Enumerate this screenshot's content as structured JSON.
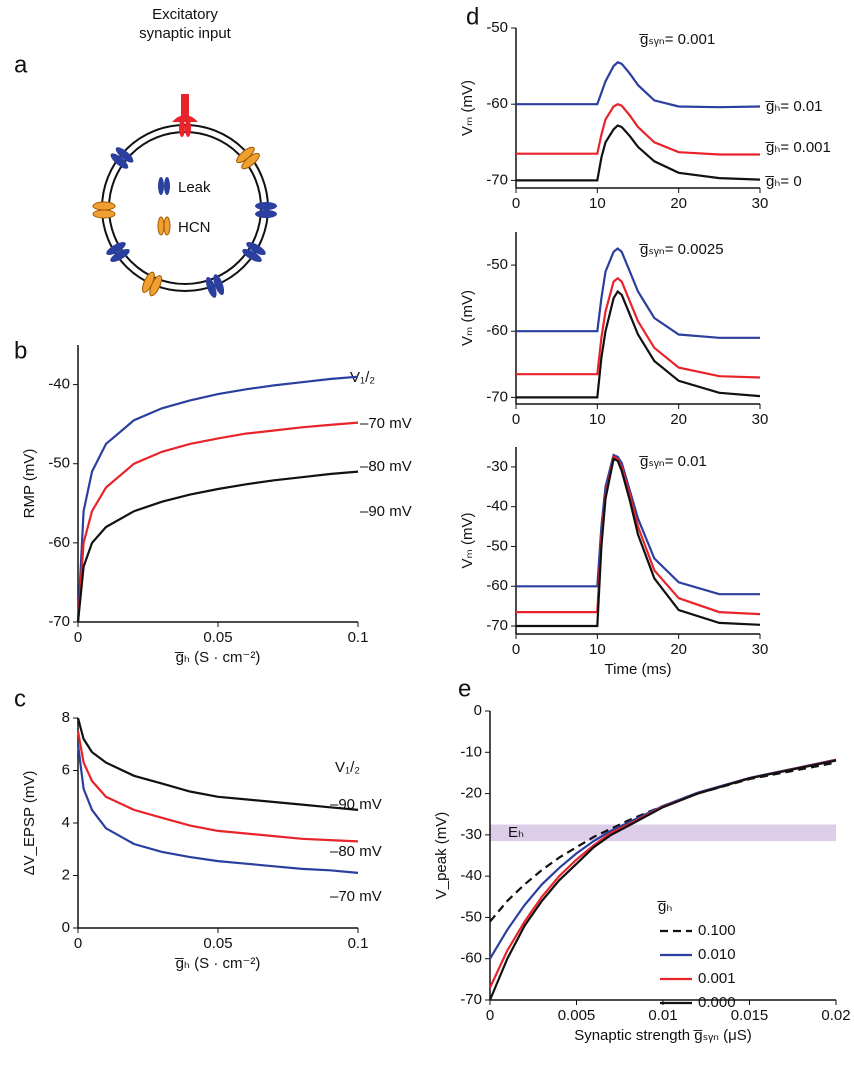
{
  "diagram": {
    "label": "a",
    "input": [
      "Excitatory",
      "synaptic input"
    ],
    "legend": [
      "Leak",
      "HCN"
    ]
  },
  "chart_data": [
    {
      "type": "line",
      "label": "b",
      "legend_title": "V₁/₂",
      "ylabel": "RMP (mV)",
      "xlabel": "g̅ₕ (S · cm⁻²)",
      "xlim": [
        0,
        0.1
      ],
      "xticks": [
        0,
        0.05,
        0.1
      ],
      "ylim": [
        -70,
        -35
      ],
      "yticks": [
        -70,
        -60,
        -50,
        -40
      ],
      "x": [
        0,
        0.002,
        0.005,
        0.01,
        0.02,
        0.03,
        0.04,
        0.05,
        0.06,
        0.07,
        0.08,
        0.09,
        0.1
      ],
      "series": [
        {
          "name": "–70 mV",
          "color": "#2b3f9e",
          "values": [
            -70,
            -56,
            -51,
            -47.5,
            -44.5,
            -43,
            -42,
            -41.2,
            -40.6,
            -40.1,
            -39.7,
            -39.3,
            -39
          ]
        },
        {
          "name": "–80 mV",
          "color": "#e8232a",
          "values": [
            -70,
            -60,
            -56,
            -53,
            -50,
            -48.5,
            -47.5,
            -46.8,
            -46.2,
            -45.8,
            -45.4,
            -45.1,
            -44.8
          ]
        },
        {
          "name": "–90 mV",
          "color": "#111111",
          "values": [
            -70,
            -63,
            -60,
            -58,
            -56,
            -54.8,
            -53.9,
            -53.2,
            -52.6,
            -52.1,
            -51.7,
            -51.3,
            -51
          ]
        }
      ]
    },
    {
      "type": "line",
      "label": "c",
      "legend_title": "V₁/₂",
      "ylabel": "ΔV_EPSP (mV)",
      "xlabel": "g̅ₕ (S · cm⁻²)",
      "xlim": [
        0,
        0.1
      ],
      "xticks": [
        0,
        0.05,
        0.1
      ],
      "ylim": [
        0,
        8
      ],
      "yticks": [
        0,
        2,
        4,
        6,
        8
      ],
      "x": [
        0,
        0.002,
        0.005,
        0.01,
        0.02,
        0.03,
        0.04,
        0.05,
        0.06,
        0.07,
        0.08,
        0.09,
        0.1
      ],
      "series": [
        {
          "name": "–90 mV",
          "color": "#111111",
          "values": [
            8,
            7.2,
            6.7,
            6.3,
            5.8,
            5.5,
            5.2,
            5.0,
            4.9,
            4.8,
            4.7,
            4.6,
            4.5
          ]
        },
        {
          "name": "–80 mV",
          "color": "#e8232a",
          "values": [
            7.5,
            6.3,
            5.6,
            5.0,
            4.5,
            4.2,
            3.9,
            3.7,
            3.6,
            3.5,
            3.4,
            3.35,
            3.3
          ]
        },
        {
          "name": "–70 mV",
          "color": "#2b3f9e",
          "values": [
            7.0,
            5.3,
            4.5,
            3.8,
            3.2,
            2.9,
            2.7,
            2.55,
            2.45,
            2.35,
            2.25,
            2.2,
            2.1
          ]
        }
      ]
    },
    {
      "type": "line",
      "label": "d",
      "annotation": "g̅ₛᵧₙ= 0.001",
      "ylabel": "Vₘ (mV)",
      "xlim": [
        0,
        30
      ],
      "xticks": [
        0,
        10,
        20,
        30
      ],
      "ylim": [
        -71,
        -50
      ],
      "yticks": [
        -70,
        -60,
        -50
      ],
      "x": [
        0,
        10,
        10.5,
        11,
        12,
        12.5,
        13,
        14,
        15,
        17,
        20,
        25,
        30
      ],
      "series": [
        {
          "name": "g̅ₕ= 0.01",
          "color": "#2b3f9e",
          "values": [
            -60,
            -60,
            -58.5,
            -57,
            -55,
            -54.5,
            -54.7,
            -56,
            -57.5,
            -59.5,
            -60.3,
            -60.4,
            -60.3
          ]
        },
        {
          "name": "g̅ₕ= 0.001",
          "color": "#e8232a",
          "values": [
            -66.5,
            -66.5,
            -64,
            -62,
            -60.3,
            -60,
            -60.2,
            -61.5,
            -63,
            -65,
            -66.3,
            -66.6,
            -66.6
          ]
        },
        {
          "name": "g̅ₕ= 0",
          "color": "#111111",
          "values": [
            -70,
            -70,
            -67,
            -65,
            -63.3,
            -62.8,
            -63,
            -64.2,
            -65.6,
            -67.5,
            -69,
            -69.7,
            -69.9
          ]
        }
      ]
    },
    {
      "type": "line",
      "annotation": "g̅ₛᵧₙ= 0.0025",
      "ylabel": "Vₘ (mV)",
      "xlim": [
        0,
        30
      ],
      "xticks": [
        0,
        10,
        20,
        30
      ],
      "ylim": [
        -71,
        -45
      ],
      "yticks": [
        -70,
        -60,
        -50
      ],
      "x": [
        0,
        10,
        10.5,
        11,
        12,
        12.5,
        13,
        14,
        15,
        17,
        20,
        25,
        30
      ],
      "series": [
        {
          "color": "#2b3f9e",
          "values": [
            -60,
            -60,
            -55,
            -51,
            -48,
            -47.5,
            -48,
            -51,
            -54,
            -58,
            -60.5,
            -61,
            -61
          ]
        },
        {
          "color": "#e8232a",
          "values": [
            -66.5,
            -66.5,
            -61,
            -57,
            -52.5,
            -52,
            -52.5,
            -55.5,
            -58.5,
            -62.5,
            -65.5,
            -66.8,
            -67
          ]
        },
        {
          "color": "#111111",
          "values": [
            -70,
            -70,
            -64,
            -60,
            -55,
            -54,
            -54.5,
            -57.5,
            -60.5,
            -64.5,
            -67.5,
            -69.3,
            -69.8
          ]
        }
      ]
    },
    {
      "type": "line",
      "annotation": "g̅ₛᵧₙ= 0.01",
      "ylabel": "Vₘ (mV)",
      "xlabel": "Time (ms)",
      "xlim": [
        0,
        30
      ],
      "xticks": [
        0,
        10,
        20,
        30
      ],
      "ylim": [
        -72,
        -25
      ],
      "yticks": [
        -70,
        -60,
        -50,
        -40,
        -30
      ],
      "x": [
        0,
        10,
        10.5,
        11,
        12,
        12.5,
        13,
        14,
        15,
        17,
        20,
        25,
        30
      ],
      "series": [
        {
          "color": "#2b3f9e",
          "values": [
            -60,
            -60,
            -45,
            -35,
            -27,
            -27.5,
            -29,
            -36,
            -43,
            -53,
            -59,
            -62,
            -62
          ]
        },
        {
          "color": "#e8232a",
          "values": [
            -66.5,
            -66.5,
            -48,
            -37,
            -27.5,
            -28,
            -30,
            -37,
            -45,
            -56,
            -63,
            -66.5,
            -67
          ]
        },
        {
          "color": "#111111",
          "values": [
            -70,
            -70,
            -50,
            -38,
            -28,
            -28.5,
            -31,
            -38.5,
            -47,
            -58,
            -66,
            -69.2,
            -69.7
          ]
        }
      ]
    },
    {
      "type": "line",
      "label": "e",
      "ylabel": "V_peak (mV)",
      "xlabel": "Synaptic strength g̅ₛᵧₙ (μS)",
      "legend_title": "g̅ₕ",
      "band": {
        "label": "Eₕ",
        "y": [
          -31.5,
          -27.5
        ],
        "color": "#dccde8"
      },
      "xlim": [
        0,
        0.02
      ],
      "xticks": [
        0,
        0.005,
        0.01,
        0.015,
        0.02
      ],
      "ylim": [
        -70,
        0
      ],
      "yticks": [
        -70,
        -60,
        -50,
        -40,
        -30,
        -20,
        -10,
        0
      ],
      "x": [
        0,
        0.001,
        0.002,
        0.003,
        0.004,
        0.005,
        0.006,
        0.007,
        0.008,
        0.01,
        0.012,
        0.015,
        0.02
      ],
      "series": [
        {
          "name": "0.100",
          "color": "#111111",
          "dash": true,
          "values": [
            -51,
            -46,
            -42,
            -38.5,
            -35.5,
            -33,
            -30.5,
            -28.5,
            -26.5,
            -23,
            -20,
            -16.5,
            -12.5
          ]
        },
        {
          "name": "0.010",
          "color": "#2b3f9e",
          "values": [
            -60,
            -53,
            -47,
            -42,
            -38,
            -34.5,
            -31.5,
            -29,
            -27,
            -23,
            -19.8,
            -16.2,
            -11.8
          ]
        },
        {
          "name": "0.001",
          "color": "#e8232a",
          "values": [
            -67,
            -58,
            -51,
            -45,
            -40,
            -36,
            -32.5,
            -29.5,
            -27.5,
            -23.2,
            -20,
            -16.3,
            -11.9
          ]
        },
        {
          "name": "0.000",
          "color": "#111111",
          "values": [
            -70,
            -60,
            -52,
            -46,
            -41,
            -37,
            -33,
            -30,
            -27.8,
            -23.3,
            -20,
            -16.3,
            -12
          ]
        }
      ]
    }
  ]
}
